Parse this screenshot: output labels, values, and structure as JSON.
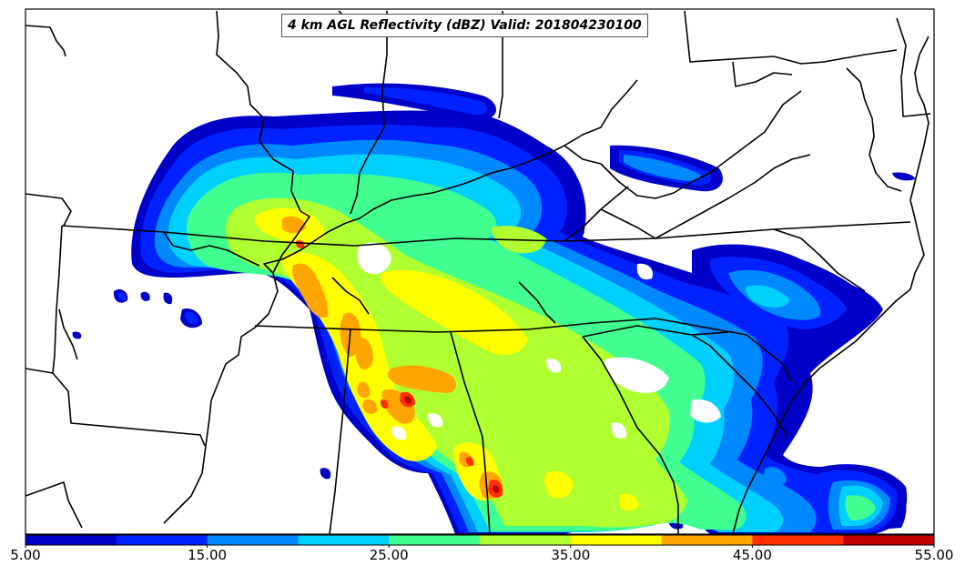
{
  "title": "4 km AGL Reflectivity (dBZ) Valid: 201804230100",
  "colorbar": {
    "tick_labels": [
      "5.00",
      "15.00",
      "25.00",
      "35.00",
      "45.00",
      "55.00"
    ],
    "min": 5,
    "max": 55,
    "interval": 5,
    "bin_colors": [
      "#0000c8",
      "#0022ff",
      "#0088ff",
      "#00d0ff",
      "#40ff90",
      "#b0ff30",
      "#ffff00",
      "#ffa500",
      "#ff3000",
      "#c00000"
    ]
  },
  "map": {
    "region": "Central and southeastern United States",
    "valid_time": "201804230100",
    "field": "4 km AGL Reflectivity",
    "units": "dBZ"
  }
}
